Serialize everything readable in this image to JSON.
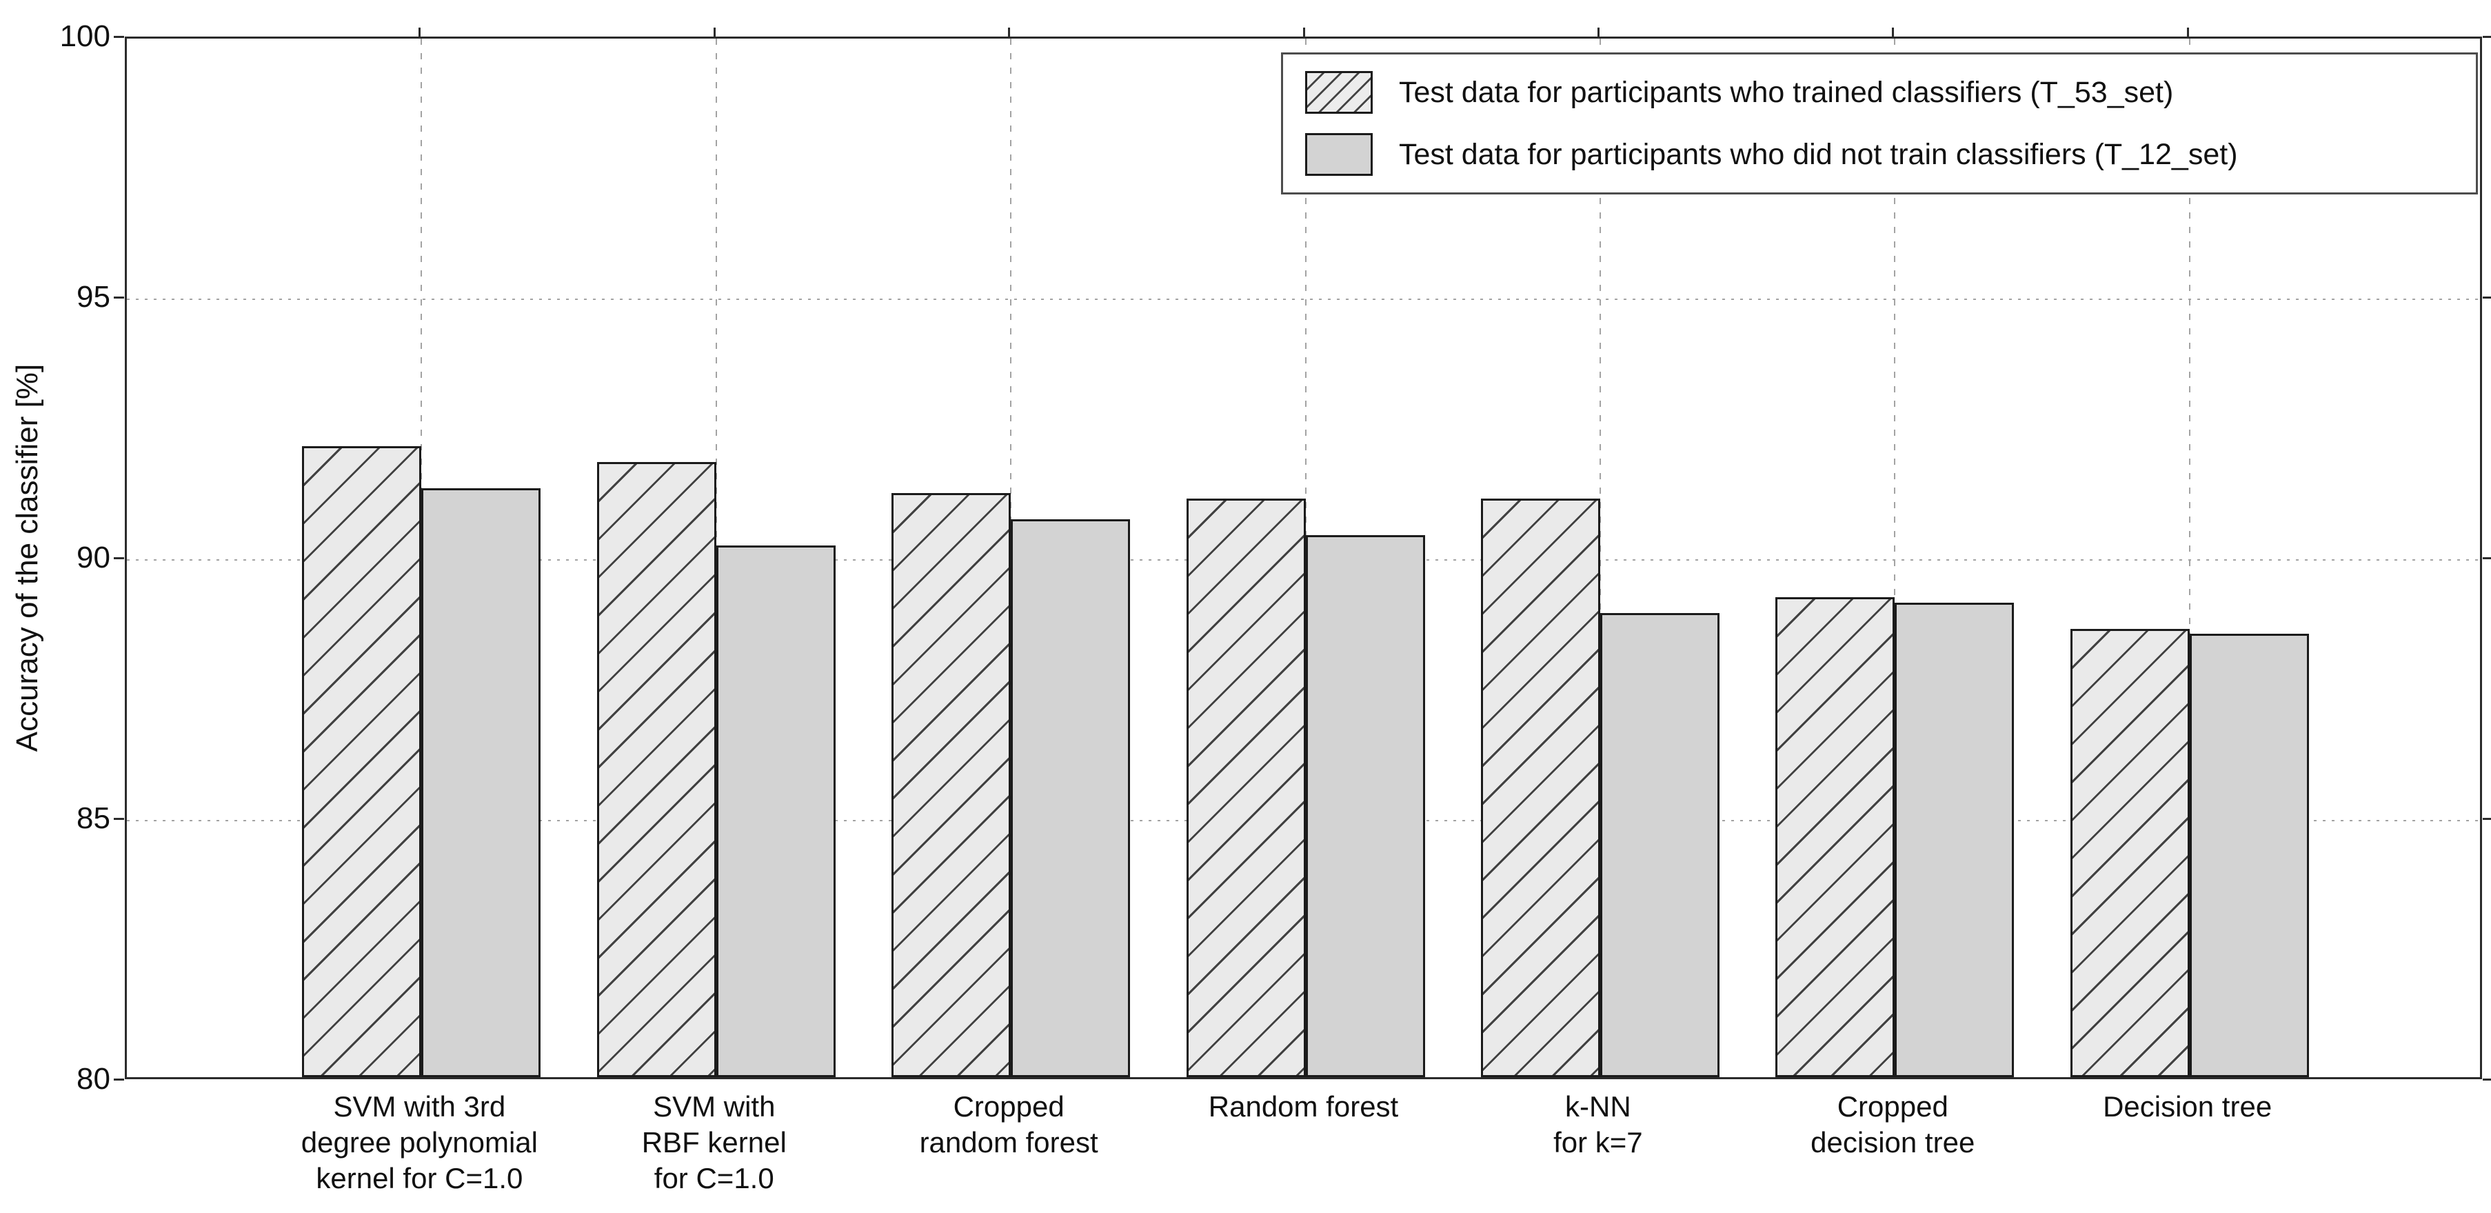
{
  "figure": {
    "ylabel": "Accuracy of the classifier [%]"
  },
  "chart_data": {
    "type": "bar",
    "title": "",
    "xlabel": "",
    "ylabel": "Accuracy of the classifier [%]",
    "ylim": [
      80,
      100
    ],
    "yticks": [
      80,
      85,
      90,
      95,
      100
    ],
    "grid": true,
    "grid_style": {
      "horizontal": "dotted",
      "vertical": "dashed",
      "color": "#a3a3a3"
    },
    "legend_position": "upper right",
    "categories": [
      "SVM with 3rd\ndegree polynomial\nkernel for C=1.0",
      "SVM with\nRBF kernel\nfor C=1.0",
      "Cropped\nrandom forest",
      "Random forest",
      "k-NN\nfor k=7",
      "Cropped\ndecision tree",
      "Decision tree"
    ],
    "series": [
      {
        "name": "Test data for participants who trained classifiers (T_53_set)",
        "style": "hatched",
        "values": [
          92.1,
          91.8,
          91.2,
          91.1,
          91.1,
          89.2,
          88.6
        ]
      },
      {
        "name": "Test data for participants who did not train classifiers (T_12_set)",
        "style": "solid",
        "values": [
          91.3,
          90.2,
          90.7,
          90.4,
          88.9,
          89.1,
          88.5
        ]
      }
    ],
    "colors": {
      "hatched_fill": "#eaeaea",
      "hatch_line": "#414141",
      "solid_fill": "#d3d3d3",
      "bar_edge": "#1b1b1b",
      "axis": "#2b2b2b",
      "grid": "#a3a3a3",
      "background": "#ffffff"
    }
  }
}
